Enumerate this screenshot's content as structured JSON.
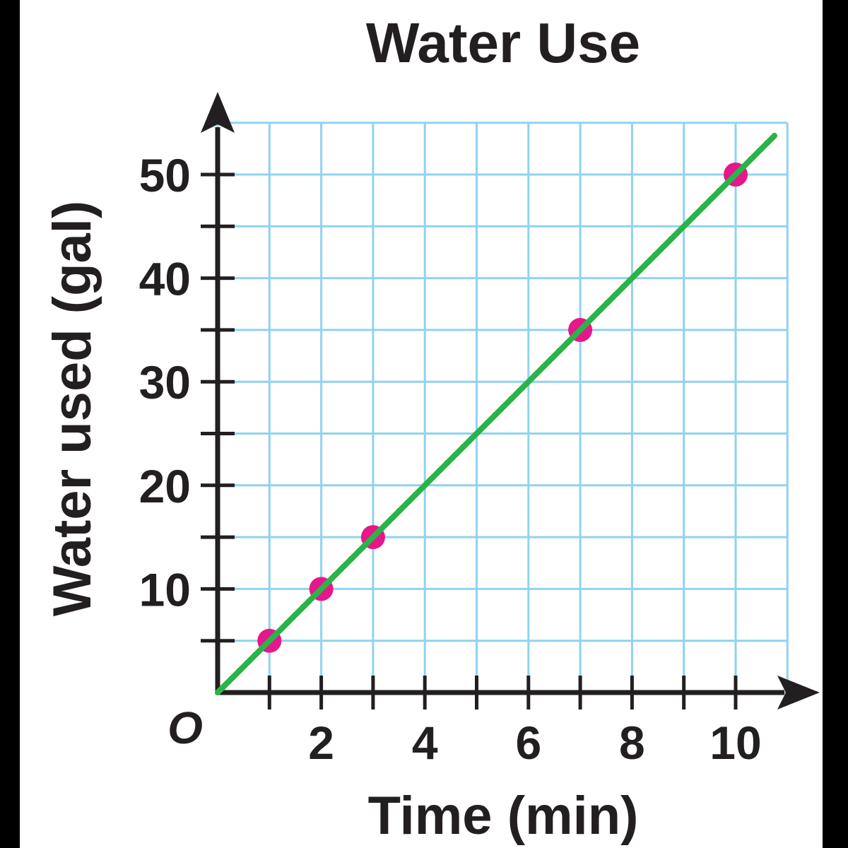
{
  "colors": {
    "background": "#ffffff",
    "frame": "#000000",
    "grid": "#8fd3f0",
    "axis": "#231f20",
    "line": "#2bb34a",
    "point": "#e6178a"
  },
  "chart_data": {
    "type": "scatter",
    "title": "Water Use",
    "xlabel": "Time (min)",
    "ylabel": "Water used (gal)",
    "origin_label": "O",
    "xlim": [
      0,
      11
    ],
    "ylim": [
      0,
      55
    ],
    "x_grid_step": 1,
    "y_grid_step": 5,
    "x_ticks": [
      1,
      2,
      3,
      4,
      5,
      6,
      7,
      8,
      9,
      10
    ],
    "x_tick_labels": [
      {
        "value": 2,
        "label": "2"
      },
      {
        "value": 4,
        "label": "4"
      },
      {
        "value": 6,
        "label": "6"
      },
      {
        "value": 8,
        "label": "8"
      },
      {
        "value": 10,
        "label": "10"
      }
    ],
    "y_ticks": [
      5,
      10,
      15,
      20,
      25,
      30,
      35,
      40,
      45,
      50
    ],
    "y_tick_labels": [
      {
        "value": 10,
        "label": "10"
      },
      {
        "value": 20,
        "label": "20"
      },
      {
        "value": 30,
        "label": "30"
      },
      {
        "value": 40,
        "label": "40"
      },
      {
        "value": 50,
        "label": "50"
      }
    ],
    "grid": true,
    "points": [
      {
        "x": 1,
        "y": 5
      },
      {
        "x": 2,
        "y": 10
      },
      {
        "x": 3,
        "y": 15
      },
      {
        "x": 7,
        "y": 35
      },
      {
        "x": 10,
        "y": 50
      }
    ],
    "line": {
      "x": [
        0,
        10.75
      ],
      "y": [
        0,
        53.75
      ]
    }
  }
}
